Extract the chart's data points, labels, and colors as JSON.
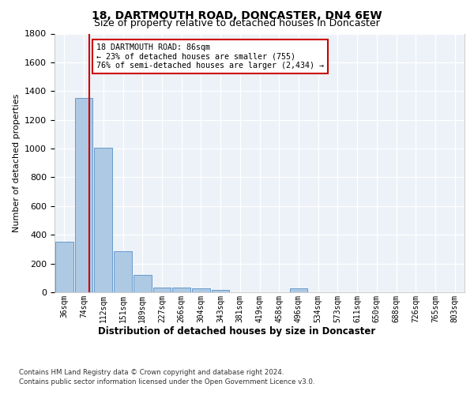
{
  "title1": "18, DARTMOUTH ROAD, DONCASTER, DN4 6EW",
  "title2": "Size of property relative to detached houses in Doncaster",
  "xlabel": "Distribution of detached houses by size in Doncaster",
  "ylabel": "Number of detached properties",
  "bar_labels": [
    "36sqm",
    "74sqm",
    "112sqm",
    "151sqm",
    "189sqm",
    "227sqm",
    "266sqm",
    "304sqm",
    "343sqm",
    "381sqm",
    "419sqm",
    "458sqm",
    "496sqm",
    "534sqm",
    "573sqm",
    "611sqm",
    "650sqm",
    "688sqm",
    "726sqm",
    "765sqm",
    "803sqm"
  ],
  "bar_values": [
    350,
    1350,
    1005,
    285,
    122,
    35,
    35,
    26,
    15,
    0,
    0,
    0,
    30,
    0,
    0,
    0,
    0,
    0,
    0,
    0,
    0
  ],
  "bar_color": "#aec9e3",
  "bar_edgecolor": "#6699cc",
  "ylim": [
    0,
    1800
  ],
  "yticks": [
    0,
    200,
    400,
    600,
    800,
    1000,
    1200,
    1400,
    1600,
    1800
  ],
  "annotation_line1": "18 DARTMOUTH ROAD: 86sqm",
  "annotation_line2": "← 23% of detached houses are smaller (755)",
  "annotation_line3": "76% of semi-detached houses are larger (2,434) →",
  "red_line_color": "#cc0000",
  "annotation_box_edgecolor": "#cc0000",
  "footer1": "Contains HM Land Registry data © Crown copyright and database right 2024.",
  "footer2": "Contains public sector information licensed under the Open Government Licence v3.0.",
  "background_color": "#edf2f8",
  "red_line_x": 1.3
}
